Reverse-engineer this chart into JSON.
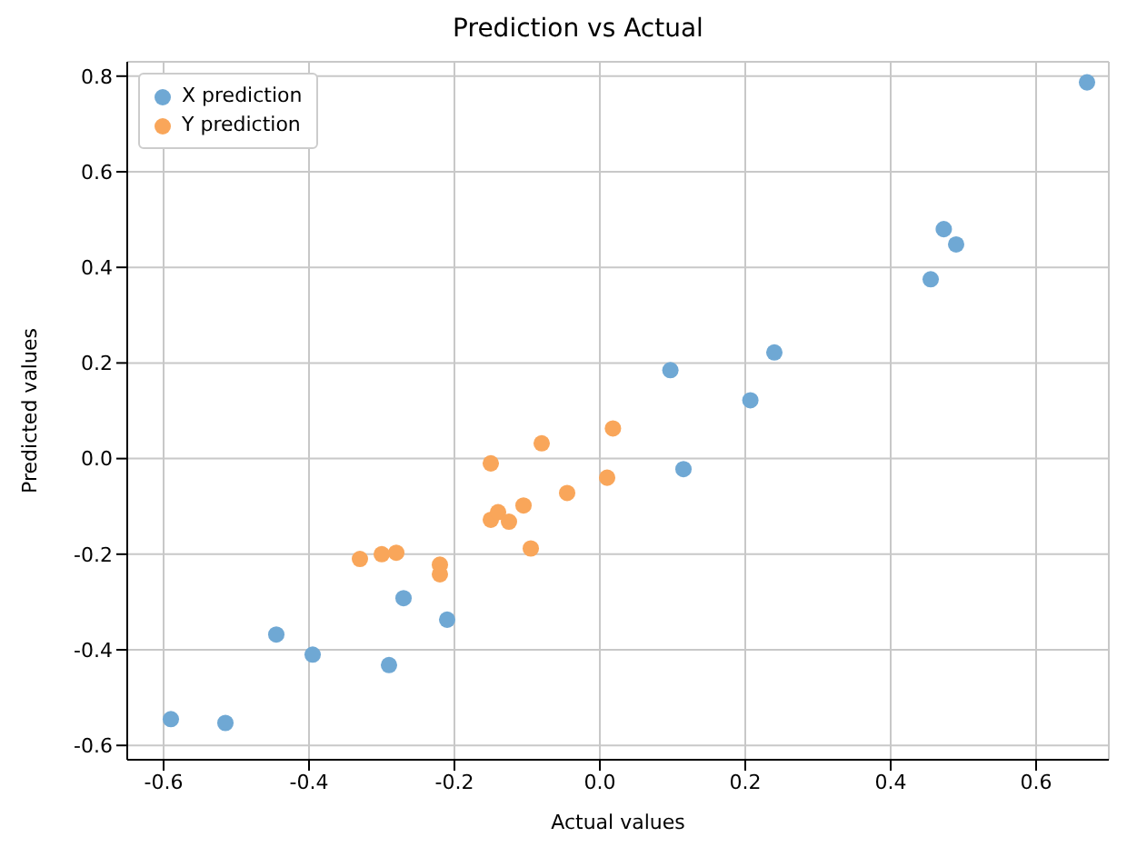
{
  "chart_data": {
    "type": "scatter",
    "title": "Prediction vs Actual",
    "xlabel": "Actual values",
    "ylabel": "Predicted values",
    "xlim": [
      -0.65,
      0.7
    ],
    "ylim": [
      -0.63,
      0.83
    ],
    "xticks": [
      -0.6,
      -0.4,
      -0.2,
      {
        "value": 0,
        "label": "0.0"
      },
      0.2,
      0.4,
      0.6
    ],
    "yticks": [
      -0.6,
      -0.4,
      -0.2,
      {
        "value": 0,
        "label": "0.0"
      },
      0.2,
      0.4,
      0.6,
      0.8
    ],
    "grid": true,
    "legend": "top left",
    "marker": "circle",
    "series": [
      {
        "name": "X prediction",
        "color": "#6fa8d4",
        "x": [
          -0.59,
          -0.515,
          -0.445,
          -0.395,
          -0.29,
          -0.27,
          -0.21,
          0.097,
          0.115,
          0.207,
          0.24,
          0.455,
          0.473,
          0.49,
          0.67
        ],
        "values": [
          -0.545,
          -0.553,
          -0.368,
          -0.41,
          -0.432,
          -0.292,
          -0.337,
          0.185,
          -0.022,
          0.122,
          0.222,
          0.375,
          0.48,
          0.448,
          0.787
        ]
      },
      {
        "name": "Y prediction",
        "color": "#f9a65a",
        "x": [
          -0.33,
          -0.3,
          -0.28,
          -0.22,
          -0.22,
          -0.15,
          -0.15,
          -0.14,
          -0.125,
          -0.105,
          -0.095,
          -0.08,
          -0.045,
          0.01,
          0.018
        ],
        "values": [
          -0.21,
          -0.2,
          -0.197,
          -0.222,
          -0.242,
          -0.01,
          -0.128,
          -0.112,
          -0.132,
          -0.098,
          -0.188,
          0.032,
          -0.072,
          -0.04,
          0.063
        ]
      }
    ]
  }
}
